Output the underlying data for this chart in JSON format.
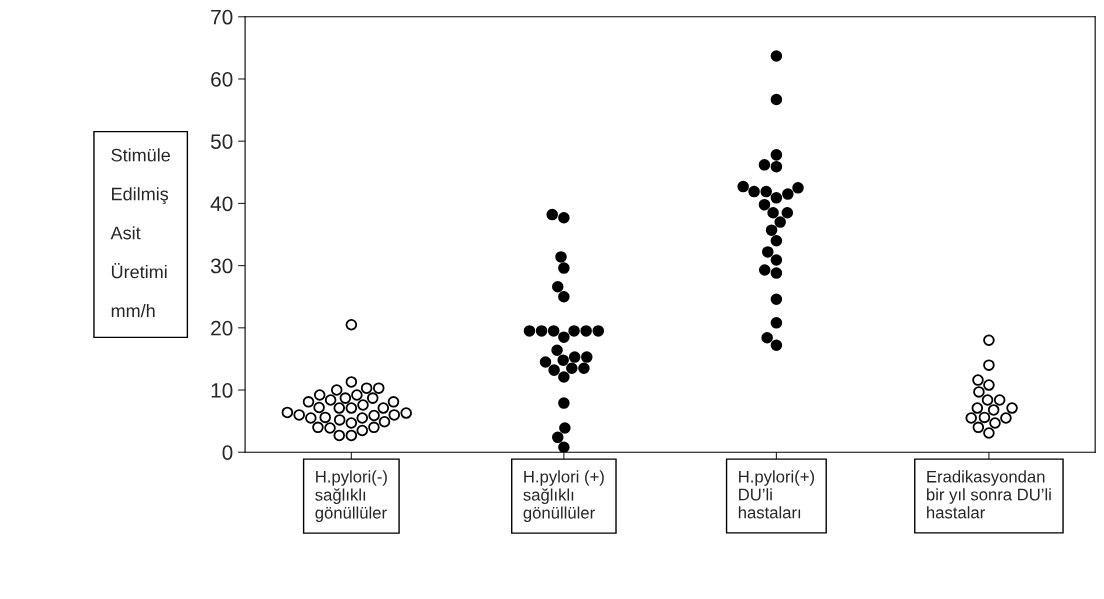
{
  "chart_data": {
    "type": "scatter",
    "ylabel": "Stimüle\n\nEdilmiş\n\nAsit\n\nÜretimi\n\nmm/h",
    "categories": [
      "H.pylori(-)\nsağlıklı\ngönüllüler",
      "H.pylori (+)\nsağlıklı\ngönüllüler",
      "H.pylori(+)\nDU’li\nhastaları",
      "Eradikasyondan\nbir yıl sonra DU’li\nhastalar"
    ],
    "ylim": [
      0,
      70
    ],
    "yticks": [
      0,
      10,
      20,
      30,
      40,
      50,
      60,
      70
    ],
    "grid": false,
    "series": [
      {
        "color": "#ffffff",
        "x": [
          "H.pylori(-)\nsağlıklı\ngönüllüler",
          "H.pylori(-)\nsağlıklı\ngönüllüler",
          "H.pylori(-)\nsağlıklı\ngönüllüler",
          "H.pylori(-)\nsağlıklı\ngönüllüler",
          "H.pylori(-)\nsağlıklı\ngönüllüler",
          "H.pylori(-)\nsağlıklı\ngönüllüler",
          "H.pylori(-)\nsağlıklı\ngönüllüler",
          "H.pylori(-)\nsağlıklı\ngönüllüler",
          "H.pylori(-)\nsağlıklı\ngönüllüler",
          "H.pylori(-)\nsağlıklı\ngönüllüler",
          "H.pylori(-)\nsağlıklı\ngönüllüler",
          "H.pylori(-)\nsağlıklı\ngönüllüler",
          "H.pylori(-)\nsağlıklı\ngönüllüler",
          "H.pylori(-)\nsağlıklı\ngönüllüler",
          "H.pylori(-)\nsağlıklı\ngönüllüler",
          "H.pylori(-)\nsağlıklı\ngönüllüler",
          "H.pylori(-)\nsağlıklı\ngönüllüler",
          "H.pylori(-)\nsağlıklı\ngönüllüler",
          "H.pylori(-)\nsağlıklı\ngönüllüler",
          "H.pylori(-)\nsağlıklı\ngönüllüler"
        ],
        "values": [
          20.5,
          5.9,
          8.7,
          7.1,
          5.5,
          10.0,
          8.7,
          7.6,
          6.4,
          5.5,
          4.0,
          2.7,
          11.3,
          10.3,
          9.2,
          8.1,
          7.1,
          6.0,
          4.7,
          3.5
        ]
      },
      {
        "color": "#ffffff",
        "x": [
          "H.pylori(-)\nsağlıklı\ngönüllüler",
          "H.pylori(-)\nsağlıklı\ngönüllüler",
          "H.pylori(-)\nsağlıklı\ngönüllüler",
          "H.pylori(-)\nsağlıklı\ngönüllüler",
          "H.pylori(-)\nsağlıklı\ngönüllüler",
          "H.pylori(-)\nsağlıklı\ngönüllüler",
          "H.pylori(-)\nsağlıklı\ngönüllüler",
          "H.pylori(-)\nsağlıklı\ngönüllüler",
          "H.pylori(-)\nsağlıklı\ngönüllüler",
          "H.pylori(-)\nsağlıklı\ngönüllüler",
          "H.pylori(-)\nsağlıklı\ngönüllüler",
          "H.pylori(-)\nsağlıklı\ngönüllüler",
          "H.pylori(-)\nsağlıklı\ngönüllüler",
          "H.pylori(-)\nsağlıklı\ngönüllüler"
        ],
        "values": [
          10.3,
          9.2,
          8.1,
          7.1,
          6.0,
          4.9,
          3.9,
          2.7,
          8.4,
          7.2,
          6.3,
          5.2,
          4.0,
          5.6
        ]
      },
      {
        "color": "#000000",
        "x": [
          "H.pylori (+)\nsağlıklı\ngönüllüler",
          "H.pylori (+)\nsağlıklı\ngönüllüler",
          "H.pylori (+)\nsağlıklı\ngönüllüler",
          "H.pylori (+)\nsağlıklı\ngönüllüler",
          "H.pylori (+)\nsağlıklı\ngönüllüler",
          "H.pylori (+)\nsağlıklı\ngönüllüler",
          "H.pylori (+)\nsağlıklı\ngönüllüler",
          "H.pylori (+)\nsağlıklı\ngönüllüler",
          "H.pylori (+)\nsağlıklı\ngönüllüler",
          "H.pylori (+)\nsağlıklı\ngönüllüler",
          "H.pylori (+)\nsağlıklı\ngönüllüler",
          "H.pylori (+)\nsağlıklı\ngönüllüler",
          "H.pylori (+)\nsağlıklı\ngönüllüler"
        ],
        "values": [
          38.2,
          37.7,
          31.4,
          29.6,
          26.6,
          25.0,
          19.5,
          19.5,
          19.5,
          19.5,
          19.5,
          19.5,
          18.5
        ]
      },
      {
        "color": "#000000",
        "x": [
          "H.pylori (+)\nsağlıklı\ngönüllüler",
          "H.pylori (+)\nsağlıklı\ngönüllüler",
          "H.pylori (+)\nsağlıklı\ngönüllüler",
          "H.pylori (+)\nsağlıklı\ngönüllüler",
          "H.pylori (+)\nsağlıklı\ngönüllüler",
          "H.pylori (+)\nsağlıklı\ngönüllüler",
          "H.pylori (+)\nsağlıklı\ngönüllüler",
          "H.pylori (+)\nsağlıklı\ngönüllüler",
          "H.pylori (+)\nsağlıklı\ngönüllüler",
          "H.pylori (+)\nsağlıklı\ngönüllüler",
          "H.pylori (+)\nsağlıklı\ngönüllüler",
          "H.pylori (+)\nsağlıklı\ngönüllüler",
          "H.pylori (+)\nsağlıklı\ngönüllüler"
        ],
        "values": [
          15.3,
          13.5,
          16.4,
          14.8,
          13.2,
          12.1,
          15.3,
          13.5,
          14.5,
          7.9,
          3.9,
          2.4,
          0.8
        ]
      },
      {
        "color": "#000000",
        "x": [
          "H.pylori(+)\nDU’li\nhastaları",
          "H.pylori(+)\nDU’li\nhastaları",
          "H.pylori(+)\nDU’li\nhastaları",
          "H.pylori(+)\nDU’li\nhastaları",
          "H.pylori(+)\nDU’li\nhastaları",
          "H.pylori(+)\nDU’li\nhastaları",
          "H.pylori(+)\nDU’li\nhastaları",
          "H.pylori(+)\nDU’li\nhastaları",
          "H.pylori(+)\nDU’li\nhastaları",
          "H.pylori(+)\nDU’li\nhastaları",
          "H.pylori(+)\nDU’li\nhastaları",
          "H.pylori(+)\nDU’li\nhastaları",
          "H.pylori(+)\nDU’li\nhastaları"
        ],
        "values": [
          63.7,
          56.7,
          47.8,
          46.2,
          45.9,
          42.7,
          41.5,
          41.9,
          42.5,
          41.9,
          39.8,
          38.5,
          40.9
        ]
      },
      {
        "color": "#000000",
        "x": [
          "H.pylori(+)\nDU’li\nhastaları",
          "H.pylori(+)\nDU’li\nhastaları",
          "H.pylori(+)\nDU’li\nhastaları",
          "H.pylori(+)\nDU’li\nhastaları",
          "H.pylori(+)\nDU’li\nhastaları",
          "H.pylori(+)\nDU’li\nhastaları",
          "H.pylori(+)\nDU’li\nhastaları",
          "H.pylori(+)\nDU’li\nhastaları",
          "H.pylori(+)\nDU’li\nhastaları",
          "H.pylori(+)\nDU’li\nhastaları",
          "H.pylori(+)\nDU’li\nhastaları",
          "H.pylori(+)\nDU’li\nhastaları"
        ],
        "values": [
          38.5,
          37.0,
          35.7,
          34.0,
          32.2,
          30.9,
          29.3,
          28.8,
          24.6,
          20.8,
          18.4,
          17.2
        ]
      },
      {
        "color": "#ffffff",
        "x": [
          "Eradikasyondan\nbir yıl sonra DU’li\nhastalar",
          "Eradikasyondan\nbir yıl sonra DU’li\nhastalar",
          "Eradikasyondan\nbir yıl sonra DU’li\nhastalar",
          "Eradikasyondan\nbir yıl sonra DU’li\nhastalar",
          "Eradikasyondan\nbir yıl sonra DU’li\nhastalar",
          "Eradikasyondan\nbir yıl sonra DU’li\nhastalar",
          "Eradikasyondan\nbir yıl sonra DU’li\nhastalar",
          "Eradikasyondan\nbir yıl sonra DU’li\nhastalar"
        ],
        "values": [
          18.0,
          14.0,
          11.6,
          10.8,
          9.7,
          8.4,
          7.1,
          7.1
        ]
      },
      {
        "color": "#ffffff",
        "x": [
          "Eradikasyondan\nbir yıl sonra DU’li\nhastalar",
          "Eradikasyondan\nbir yıl sonra DU’li\nhastalar",
          "Eradikasyondan\nbir yıl sonra DU’li\nhastalar",
          "Eradikasyondan\nbir yıl sonra DU’li\nhastalar",
          "Eradikasyondan\nbir yıl sonra DU’li\nhastalar",
          "Eradikasyondan\nbir yıl sonra DU’li\nhastalar",
          "Eradikasyondan\nbir yıl sonra DU’li\nhastalar",
          "Eradikasyondan\nbir yıl sonra DU’li\nhastalar"
        ],
        "values": [
          8.4,
          6.8,
          5.5,
          5.6,
          4.7,
          5.5,
          4.0,
          3.1
        ]
      }
    ]
  }
}
